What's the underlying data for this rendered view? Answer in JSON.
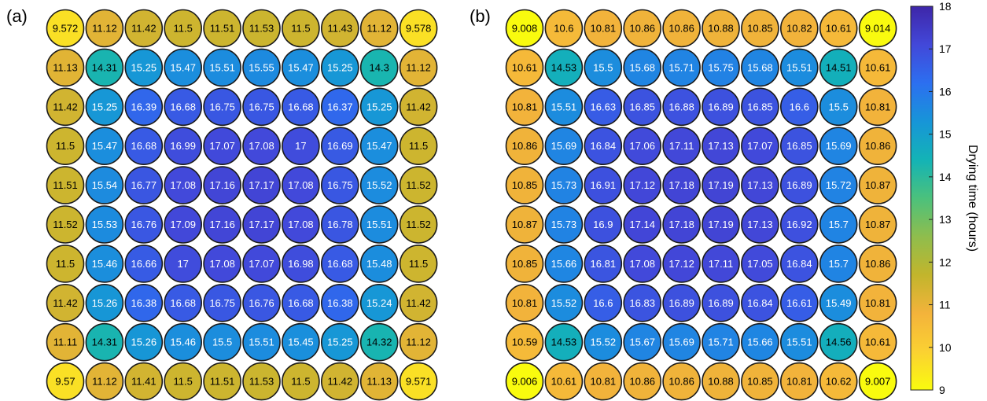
{
  "chart_data": {
    "type": "heatmap",
    "panels": [
      {
        "label": "(a)",
        "values": [
          [
            "9.572",
            "11.12",
            "11.42",
            "11.5",
            "11.51",
            "11.53",
            "11.5",
            "11.43",
            "11.12",
            "9.578"
          ],
          [
            "11.13",
            "14.31",
            "15.25",
            "15.47",
            "15.51",
            "15.55",
            "15.47",
            "15.25",
            "14.3",
            "11.12"
          ],
          [
            "11.42",
            "15.25",
            "16.39",
            "16.68",
            "16.75",
            "16.75",
            "16.68",
            "16.37",
            "15.25",
            "11.42"
          ],
          [
            "11.5",
            "15.47",
            "16.68",
            "16.99",
            "17.07",
            "17.08",
            "17",
            "16.69",
            "15.47",
            "11.5"
          ],
          [
            "11.51",
            "15.54",
            "16.77",
            "17.08",
            "17.16",
            "17.17",
            "17.08",
            "16.75",
            "15.52",
            "11.52"
          ],
          [
            "11.52",
            "15.53",
            "16.76",
            "17.09",
            "17.16",
            "17.17",
            "17.08",
            "16.78",
            "15.51",
            "11.52"
          ],
          [
            "11.5",
            "15.46",
            "16.66",
            "17",
            "17.08",
            "17.07",
            "16.98",
            "16.68",
            "15.48",
            "11.5"
          ],
          [
            "11.42",
            "15.26",
            "16.38",
            "16.68",
            "16.75",
            "16.76",
            "16.68",
            "16.38",
            "15.24",
            "11.42"
          ],
          [
            "11.11",
            "14.31",
            "15.26",
            "15.46",
            "15.5",
            "15.51",
            "15.45",
            "15.25",
            "14.32",
            "11.12"
          ],
          [
            "9.57",
            "11.12",
            "11.41",
            "11.5",
            "11.51",
            "11.53",
            "11.5",
            "11.42",
            "11.13",
            "9.571"
          ]
        ]
      },
      {
        "label": "(b)",
        "values": [
          [
            "9.008",
            "10.6",
            "10.81",
            "10.86",
            "10.86",
            "10.88",
            "10.85",
            "10.82",
            "10.61",
            "9.014"
          ],
          [
            "10.61",
            "14.53",
            "15.5",
            "15.68",
            "15.71",
            "15.75",
            "15.68",
            "15.51",
            "14.51",
            "10.61"
          ],
          [
            "10.81",
            "15.51",
            "16.63",
            "16.85",
            "16.88",
            "16.89",
            "16.85",
            "16.6",
            "15.5",
            "10.81"
          ],
          [
            "10.86",
            "15.69",
            "16.84",
            "17.06",
            "17.11",
            "17.13",
            "17.07",
            "16.85",
            "15.69",
            "10.86"
          ],
          [
            "10.85",
            "15.73",
            "16.91",
            "17.12",
            "17.18",
            "17.19",
            "17.13",
            "16.89",
            "15.72",
            "10.87"
          ],
          [
            "10.87",
            "15.73",
            "16.9",
            "17.14",
            "17.18",
            "17.19",
            "17.13",
            "16.92",
            "15.7",
            "10.87"
          ],
          [
            "10.85",
            "15.66",
            "16.81",
            "17.08",
            "17.12",
            "17.11",
            "17.05",
            "16.84",
            "15.7",
            "10.86"
          ],
          [
            "10.81",
            "15.52",
            "16.6",
            "16.83",
            "16.89",
            "16.89",
            "16.84",
            "16.61",
            "15.49",
            "10.81"
          ],
          [
            "10.59",
            "14.53",
            "15.52",
            "15.67",
            "15.69",
            "15.71",
            "15.66",
            "15.51",
            "14.56",
            "10.61"
          ],
          [
            "9.006",
            "10.61",
            "10.81",
            "10.86",
            "10.86",
            "10.88",
            "10.85",
            "10.81",
            "10.62",
            "9.007"
          ]
        ]
      }
    ],
    "colorbar": {
      "label": "Drying time (hours)",
      "range": [
        9,
        18
      ],
      "ticks": [
        "9",
        "10",
        "11",
        "12",
        "13",
        "14",
        "15",
        "16",
        "17",
        "18"
      ],
      "colormap": "parula"
    }
  }
}
